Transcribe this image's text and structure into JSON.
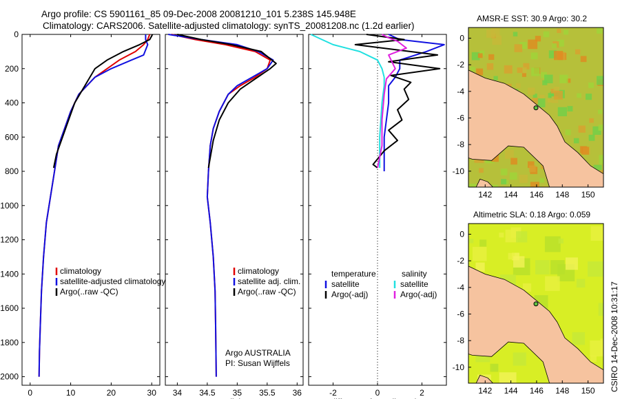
{
  "header": {
    "line1": "Argo profile: CS 5901161_85 09-Dec-2008 20081210_101 5.238S 145.948E",
    "line2": "Climatology: CARS2006. Satellite-adjusted climatology: synTS_20081208.nc (1.2d earlier)"
  },
  "side_stamp": "CSIRO 14-Dec-2008 10:31:17",
  "colors": {
    "climatology": "#e00000",
    "satellite": "#1010e0",
    "argo": "#000000",
    "salinity_satellite": "#20e0e0",
    "salinity_argo": "#e020e0",
    "land": "#f6c39f"
  },
  "chart_data": [
    {
      "type": "line",
      "id": "temperature",
      "xlabel": "temperature",
      "xlim": [
        -2,
        32
      ],
      "xticks": [
        "0",
        "10",
        "20",
        "30"
      ],
      "ylim": [
        0,
        2050
      ],
      "yticks": [
        "0",
        "200",
        "400",
        "600",
        "800",
        "1000",
        "1200",
        "1400",
        "1600",
        "1800",
        "2000"
      ],
      "legend": [
        "climatology",
        "satellite-adjusted climatology",
        "Argo(..raw -QC)"
      ],
      "series": [
        {
          "name": "climatology",
          "x": [
            29.5,
            29,
            28,
            26,
            22,
            19,
            16,
            14,
            12,
            10,
            8.5,
            7,
            6,
            5,
            4,
            3.3,
            2.8,
            2.5,
            2.3,
            2.2
          ],
          "y": [
            0,
            30,
            60,
            100,
            150,
            200,
            250,
            300,
            350,
            450,
            550,
            650,
            800,
            950,
            1100,
            1300,
            1500,
            1700,
            1850,
            2000
          ]
        },
        {
          "name": "satellite-adjusted climatology",
          "x": [
            28.5,
            28.5,
            29,
            28,
            25,
            20,
            16,
            14,
            12,
            10,
            8.5,
            7,
            6,
            5,
            4,
            3.3,
            2.8,
            2.5,
            2.3,
            2.2
          ],
          "y": [
            0,
            30,
            60,
            120,
            150,
            200,
            250,
            300,
            350,
            450,
            550,
            650,
            800,
            950,
            1100,
            1300,
            1500,
            1700,
            1850,
            2000
          ]
        },
        {
          "name": "Argo(..raw -QC)",
          "x": [
            30.2,
            29.5,
            27,
            23,
            19,
            16,
            13.5,
            11,
            9.5,
            8,
            6.5,
            5.8
          ],
          "y": [
            0,
            30,
            60,
            100,
            150,
            200,
            300,
            400,
            500,
            600,
            700,
            780
          ]
        }
      ]
    },
    {
      "type": "line",
      "id": "salinity",
      "xlabel": "salinity",
      "xlim": [
        33.8,
        36.1
      ],
      "xticks": [
        "34",
        "34.5",
        "35",
        "35.5",
        "36"
      ],
      "ylim": [
        0,
        2050
      ],
      "legend": [
        "climatology",
        "satellite adj. clim.",
        "Argo(..raw -QC)"
      ],
      "annotation": [
        "Argo AUSTRALIA",
        "PI: Susan Wijffels"
      ],
      "series": [
        {
          "name": "climatology",
          "x": [
            33.9,
            34.3,
            34.8,
            35.3,
            35.55,
            35.5,
            35.3,
            35.05,
            34.85,
            34.7,
            34.6,
            34.55,
            34.52,
            34.5,
            34.55,
            34.6,
            34.63,
            34.64,
            34.65
          ],
          "y": [
            0,
            30,
            60,
            100,
            150,
            200,
            250,
            300,
            350,
            450,
            550,
            650,
            800,
            950,
            1100,
            1300,
            1500,
            1700,
            2000
          ]
        },
        {
          "name": "satellite adj. clim.",
          "x": [
            33.85,
            34.4,
            35.0,
            35.35,
            35.6,
            35.5,
            35.25,
            35.0,
            34.85,
            34.7,
            34.6,
            34.55,
            34.52,
            34.5,
            34.55,
            34.6,
            34.63,
            34.64,
            34.65
          ],
          "y": [
            0,
            30,
            60,
            100,
            150,
            200,
            250,
            300,
            350,
            450,
            550,
            650,
            800,
            950,
            1100,
            1300,
            1500,
            1700,
            2000
          ]
        },
        {
          "name": "Argo(..raw -QC)",
          "x": [
            34.0,
            34.4,
            34.9,
            35.4,
            35.65,
            35.55,
            35.3,
            35.05,
            34.85,
            34.7,
            34.6,
            34.52
          ],
          "y": [
            0,
            30,
            60,
            100,
            170,
            200,
            260,
            320,
            400,
            500,
            620,
            780
          ]
        }
      ]
    },
    {
      "type": "line",
      "id": "difference",
      "xlabel": "difference from climatology",
      "xlim": [
        -3.1,
        3.1
      ],
      "xticks": [
        "-2",
        "0",
        "2"
      ],
      "ylim": [
        0,
        2050
      ],
      "legend_headers": [
        "temperature",
        "salinity"
      ],
      "legend": [
        "satellite",
        "Argo(-adj)",
        "satellite",
        "Argo(-adj)"
      ],
      "series": [
        {
          "name": "temperature satellite",
          "x": [
            0.5,
            1,
            3.0,
            2.2,
            1.0,
            1.0,
            0.8,
            0.5,
            0.5,
            0.3,
            0.3,
            0.3
          ],
          "y": [
            0,
            30,
            60,
            100,
            150,
            200,
            250,
            300,
            400,
            600,
            800,
            800
          ]
        },
        {
          "name": "temperature Argo(-adj)",
          "x": [
            -0.5,
            1.2,
            -1.0,
            2.7,
            0.5,
            2.8,
            0.6,
            1.5,
            1.2,
            1.4,
            0.9,
            1.1,
            0.5,
            0.9,
            0.3,
            -0.2,
            0
          ],
          "y": [
            0,
            30,
            60,
            120,
            160,
            200,
            240,
            280,
            320,
            380,
            440,
            500,
            560,
            620,
            680,
            760,
            780
          ]
        },
        {
          "name": "salinity satellite",
          "x": [
            -3,
            -2.5,
            -2.0,
            -0.8,
            0,
            0.2,
            0.3,
            0.3,
            0.2,
            0.1,
            0.1
          ],
          "y": [
            0,
            30,
            60,
            100,
            150,
            200,
            250,
            300,
            400,
            600,
            780
          ]
        },
        {
          "name": "salinity Argo(-adj)",
          "x": [
            0.2,
            0.5,
            0.9,
            1.3,
            0.5,
            0.8,
            0.4,
            0.3,
            0.2,
            0.2,
            0
          ],
          "y": [
            0,
            20,
            40,
            80,
            120,
            200,
            260,
            350,
            500,
            650,
            780
          ]
        }
      ]
    }
  ],
  "maps": [
    {
      "title": "AMSR-E SST: 30.9 Argo: 30.2",
      "xticks": [
        "142",
        "144",
        "146",
        "148",
        "150"
      ],
      "yticks": [
        "0",
        "-2",
        "-4",
        "-6",
        "-8",
        "-10"
      ],
      "fill_color": "#b6c03a"
    },
    {
      "title": "Altimetric SLA: 0.18 Argo: 0.059",
      "xticks": [
        "142",
        "144",
        "146",
        "148",
        "150"
      ],
      "yticks": [
        "0",
        "-2",
        "-4",
        "-6",
        "-8",
        "-10"
      ],
      "fill_color": "#d8ee25"
    }
  ]
}
